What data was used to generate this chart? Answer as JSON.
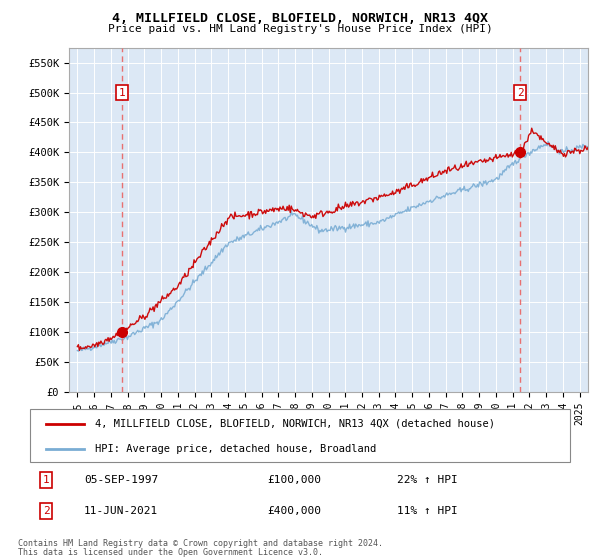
{
  "title": "4, MILLFIELD CLOSE, BLOFIELD, NORWICH, NR13 4QX",
  "subtitle": "Price paid vs. HM Land Registry's House Price Index (HPI)",
  "legend_line1": "4, MILLFIELD CLOSE, BLOFIELD, NORWICH, NR13 4QX (detached house)",
  "legend_line2": "HPI: Average price, detached house, Broadland",
  "footnote1": "Contains HM Land Registry data © Crown copyright and database right 2024.",
  "footnote2": "This data is licensed under the Open Government Licence v3.0.",
  "sale1_date": "05-SEP-1997",
  "sale1_price": 100000,
  "sale1_label": "22% ↑ HPI",
  "sale2_date": "11-JUN-2021",
  "sale2_price": 400000,
  "sale2_label": "11% ↑ HPI",
  "sale1_year": 1997.67,
  "sale2_year": 2021.44,
  "background_color": "#dce8f5",
  "line_color_red": "#cc0000",
  "line_color_blue": "#7aadd4",
  "sale_marker_color": "#cc0000",
  "vline_color": "#e87070",
  "ylim_min": 0,
  "ylim_max": 575000,
  "xlim_min": 1994.5,
  "xlim_max": 2025.5,
  "yticks": [
    0,
    50000,
    100000,
    150000,
    200000,
    250000,
    300000,
    350000,
    400000,
    450000,
    500000,
    550000
  ],
  "ytick_labels": [
    "£0",
    "£50K",
    "£100K",
    "£150K",
    "£200K",
    "£250K",
    "£300K",
    "£350K",
    "£400K",
    "£450K",
    "£500K",
    "£550K"
  ],
  "xticks": [
    1995,
    1996,
    1997,
    1998,
    1999,
    2000,
    2001,
    2002,
    2003,
    2004,
    2005,
    2006,
    2007,
    2008,
    2009,
    2010,
    2011,
    2012,
    2013,
    2014,
    2015,
    2016,
    2017,
    2018,
    2019,
    2020,
    2021,
    2022,
    2023,
    2024,
    2025
  ]
}
